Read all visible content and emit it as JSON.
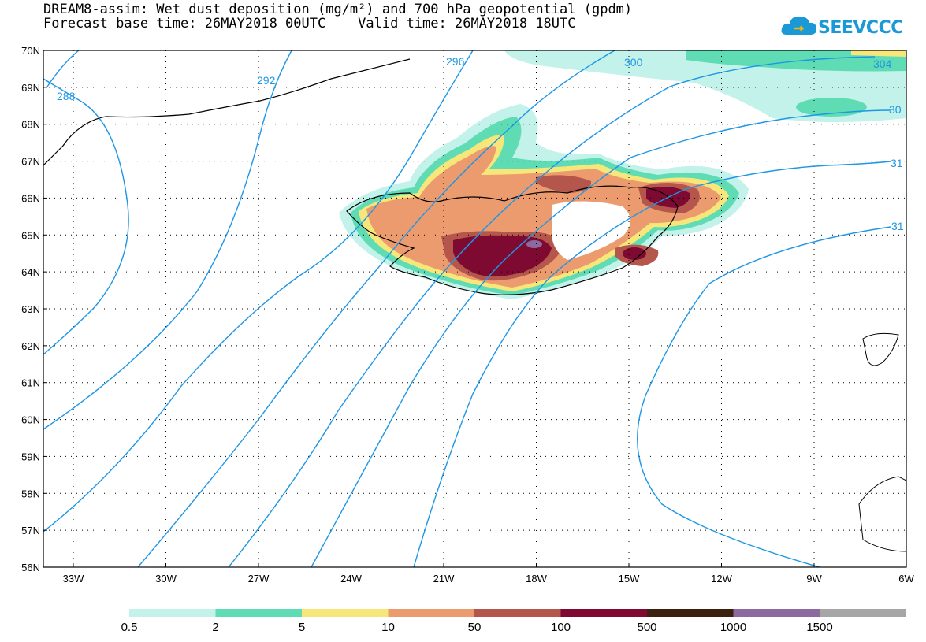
{
  "title": {
    "line1": "DREAM8-assim: Wet dust deposition (mg/m²) and 700 hPa geopotential (gpdm)",
    "line2": "Forecast base time: 26MAY2018 00UTC    Valid time: 26MAY2018 18UTC"
  },
  "logo": {
    "text": "SEEVCCC",
    "icon": "cloud-logo-icon"
  },
  "map": {
    "lat_labels": [
      "70N",
      "69N",
      "68N",
      "67N",
      "66N",
      "65N",
      "64N",
      "63N",
      "62N",
      "61N",
      "60N",
      "59N",
      "58N",
      "57N",
      "56N"
    ],
    "lon_labels": [
      "33W",
      "30W",
      "27W",
      "24W",
      "21W",
      "18W",
      "15W",
      "12W",
      "9W",
      "6W"
    ],
    "contour_color": "#1e96e6",
    "contour_labels": [
      "288",
      "292",
      "296",
      "300",
      "304",
      "30",
      "31",
      "31"
    ]
  },
  "colorbar": {
    "colors": [
      "#c2f2ea",
      "#5fdcb4",
      "#f7e77a",
      "#ec9b6e",
      "#b4564c",
      "#7e0a32",
      "#3c2010",
      "#8c6aa0",
      "#a6a6a6"
    ],
    "labels": [
      "0.5",
      "2",
      "5",
      "10",
      "50",
      "100",
      "500",
      "1000",
      "1500"
    ]
  }
}
